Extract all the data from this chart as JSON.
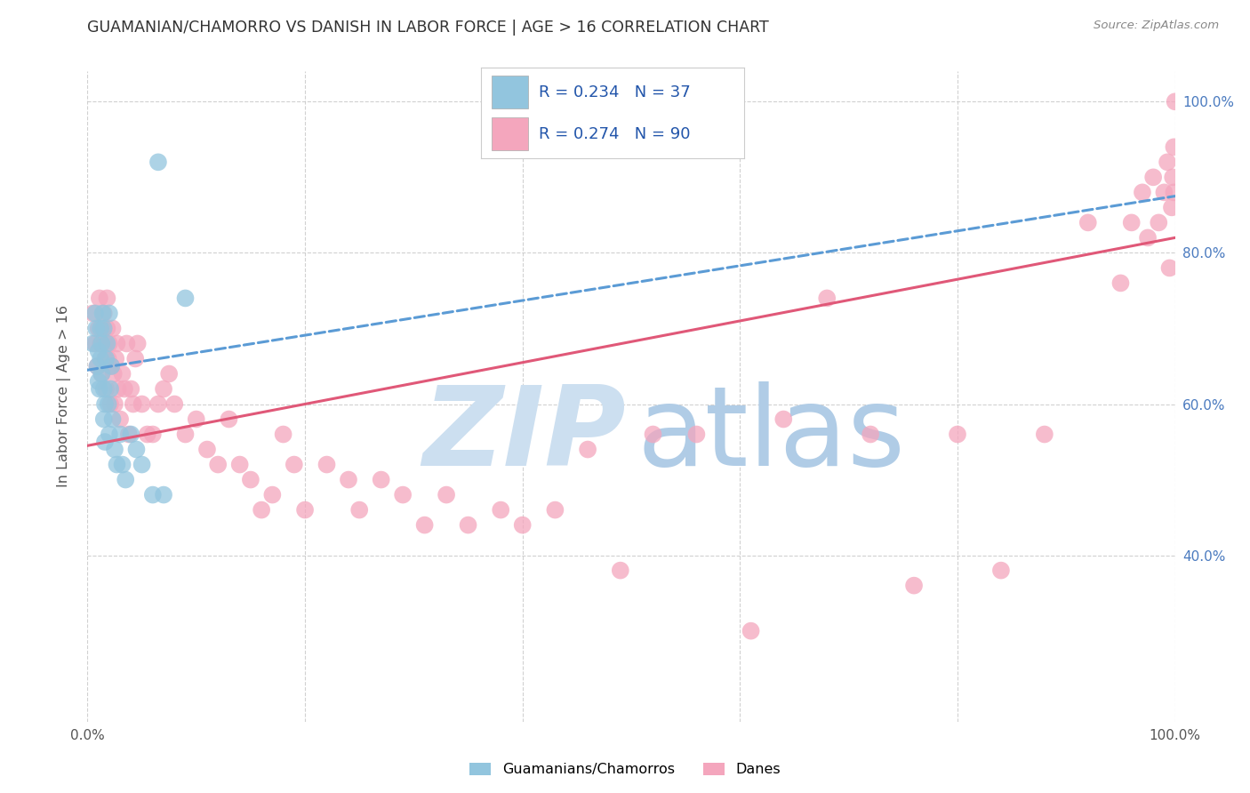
{
  "title": "GUAMANIAN/CHAMORRO VS DANISH IN LABOR FORCE | AGE > 16 CORRELATION CHART",
  "source": "Source: ZipAtlas.com",
  "ylabel_label": "In Labor Force | Age > 16",
  "legend_blue_r": "0.234",
  "legend_blue_n": "37",
  "legend_pink_r": "0.274",
  "legend_pink_n": "90",
  "legend_blue_label": "Guamanians/Chamorros",
  "legend_pink_label": "Danes",
  "blue_color": "#92c5de",
  "pink_color": "#f4a6bd",
  "blue_line_color": "#5b9bd5",
  "pink_line_color": "#e05878",
  "text_color_legend": "#2255aa",
  "background_color": "#ffffff",
  "grid_color": "#cccccc",
  "xlim": [
    0.0,
    1.0
  ],
  "ylim": [
    0.18,
    1.04
  ],
  "blue_scatter_x": [
    0.005,
    0.007,
    0.008,
    0.009,
    0.01,
    0.01,
    0.011,
    0.012,
    0.012,
    0.013,
    0.013,
    0.014,
    0.015,
    0.015,
    0.015,
    0.016,
    0.016,
    0.017,
    0.018,
    0.019,
    0.02,
    0.02,
    0.021,
    0.022,
    0.023,
    0.025,
    0.027,
    0.03,
    0.032,
    0.035,
    0.04,
    0.045,
    0.05,
    0.06,
    0.065,
    0.07,
    0.09
  ],
  "blue_scatter_y": [
    0.68,
    0.72,
    0.7,
    0.65,
    0.63,
    0.67,
    0.62,
    0.7,
    0.66,
    0.64,
    0.68,
    0.72,
    0.58,
    0.62,
    0.7,
    0.55,
    0.6,
    0.66,
    0.68,
    0.6,
    0.56,
    0.72,
    0.62,
    0.65,
    0.58,
    0.54,
    0.52,
    0.56,
    0.52,
    0.5,
    0.56,
    0.54,
    0.52,
    0.48,
    0.92,
    0.48,
    0.74
  ],
  "pink_scatter_x": [
    0.005,
    0.007,
    0.009,
    0.01,
    0.011,
    0.012,
    0.013,
    0.014,
    0.015,
    0.016,
    0.016,
    0.017,
    0.018,
    0.018,
    0.019,
    0.02,
    0.021,
    0.022,
    0.023,
    0.024,
    0.025,
    0.026,
    0.027,
    0.028,
    0.03,
    0.032,
    0.034,
    0.036,
    0.038,
    0.04,
    0.042,
    0.044,
    0.046,
    0.05,
    0.055,
    0.06,
    0.065,
    0.07,
    0.075,
    0.08,
    0.09,
    0.1,
    0.11,
    0.12,
    0.13,
    0.14,
    0.15,
    0.16,
    0.17,
    0.18,
    0.19,
    0.2,
    0.22,
    0.24,
    0.25,
    0.27,
    0.29,
    0.31,
    0.33,
    0.35,
    0.38,
    0.4,
    0.43,
    0.46,
    0.49,
    0.52,
    0.56,
    0.61,
    0.64,
    0.68,
    0.72,
    0.76,
    0.8,
    0.84,
    0.88,
    0.92,
    0.95,
    0.96,
    0.97,
    0.975,
    0.98,
    0.985,
    0.99,
    0.993,
    0.995,
    0.997,
    0.998,
    0.999,
    0.999,
    1.0
  ],
  "pink_scatter_y": [
    0.72,
    0.68,
    0.65,
    0.7,
    0.74,
    0.68,
    0.64,
    0.7,
    0.72,
    0.66,
    0.68,
    0.62,
    0.7,
    0.74,
    0.66,
    0.68,
    0.6,
    0.65,
    0.7,
    0.64,
    0.6,
    0.66,
    0.68,
    0.62,
    0.58,
    0.64,
    0.62,
    0.68,
    0.56,
    0.62,
    0.6,
    0.66,
    0.68,
    0.6,
    0.56,
    0.56,
    0.6,
    0.62,
    0.64,
    0.6,
    0.56,
    0.58,
    0.54,
    0.52,
    0.58,
    0.52,
    0.5,
    0.46,
    0.48,
    0.56,
    0.52,
    0.46,
    0.52,
    0.5,
    0.46,
    0.5,
    0.48,
    0.44,
    0.48,
    0.44,
    0.46,
    0.44,
    0.46,
    0.54,
    0.38,
    0.56,
    0.56,
    0.3,
    0.58,
    0.74,
    0.56,
    0.36,
    0.56,
    0.38,
    0.56,
    0.84,
    0.76,
    0.84,
    0.88,
    0.82,
    0.9,
    0.84,
    0.88,
    0.92,
    0.78,
    0.86,
    0.9,
    0.94,
    0.88,
    1.0
  ],
  "blue_line_x0": 0.0,
  "blue_line_y0": 0.645,
  "blue_line_x1": 1.0,
  "blue_line_y1": 0.875,
  "pink_line_x0": 0.0,
  "pink_line_y0": 0.545,
  "pink_line_x1": 1.0,
  "pink_line_y1": 0.82
}
